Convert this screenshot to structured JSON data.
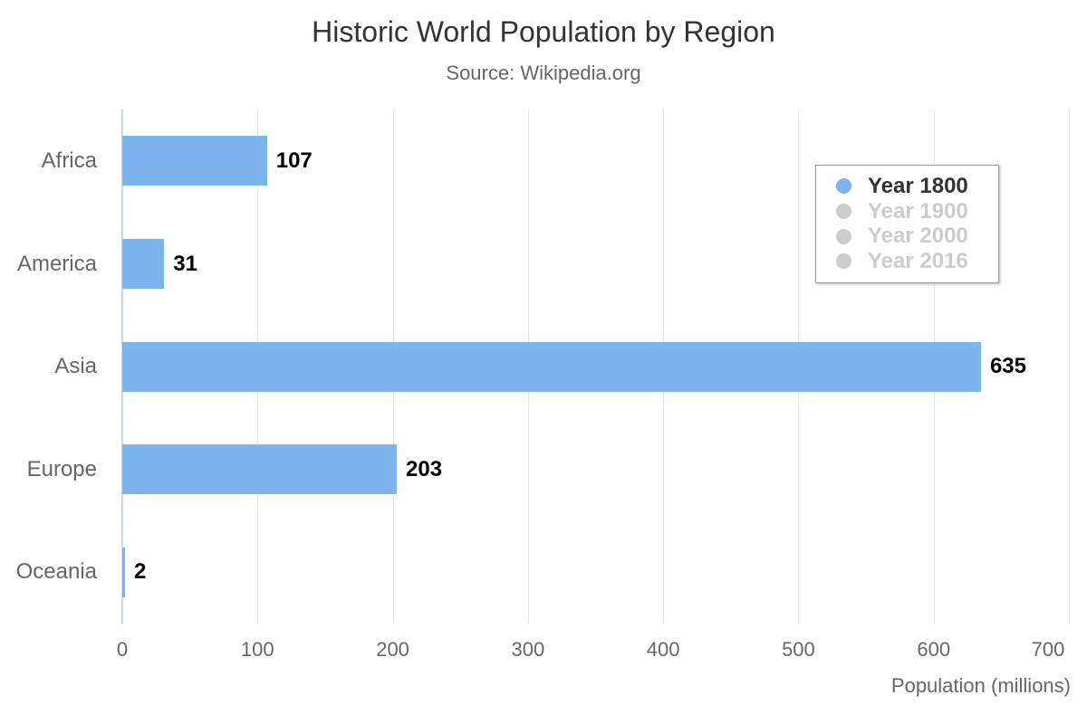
{
  "chart_data": {
    "type": "bar",
    "title": "Historic World Population by Region",
    "subtitle": "Source: Wikipedia.org",
    "categories": [
      "Africa",
      "America",
      "Asia",
      "Europe",
      "Oceania"
    ],
    "series": [
      {
        "name": "Year 1800",
        "visible": true,
        "values": [
          107,
          31,
          635,
          203,
          2
        ]
      },
      {
        "name": "Year 1900",
        "visible": false
      },
      {
        "name": "Year 2000",
        "visible": false
      },
      {
        "name": "Year 2016",
        "visible": false
      }
    ],
    "xlabel": "Population (millions)",
    "ylabel": "",
    "xlim": [
      0,
      700
    ],
    "xticks": [
      0,
      100,
      200,
      300,
      400,
      500,
      600,
      700
    ],
    "grid": true,
    "legend_position": "inside-top-right",
    "colors": {
      "bar": "#7cb5ec",
      "gridline": "#e6e6e6",
      "axis_line": "#ccd6eb",
      "title_text": "#333333",
      "secondary_text": "#666666",
      "data_label_text": "#000000",
      "legend_active_text": "#333333",
      "legend_inactive": "#cccccc",
      "legend_border": "#999999"
    }
  }
}
